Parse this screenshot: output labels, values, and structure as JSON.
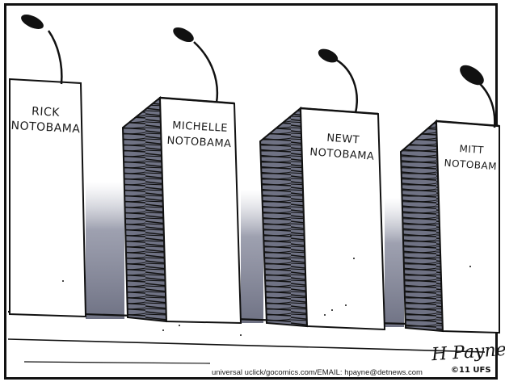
{
  "podiums": [
    {
      "first": "RICK",
      "last": "NOTOBAMA"
    },
    {
      "first": "MICHELLE",
      "last": "NOTOBAMA"
    },
    {
      "first": "NEWT",
      "last": "NOTOBAMA"
    },
    {
      "first": "MITT",
      "last": "NOTOBAM"
    }
  ],
  "credit": "universal uclick/gocomics.com/EMAIL: hpayne@detnews.com",
  "copyright": "©11 UFS",
  "signature": "H Payne",
  "colors": {
    "ink": "#111111",
    "shadow": "#6f7284",
    "shadow_light": "#b9bcc8",
    "paper": "#ffffff"
  }
}
